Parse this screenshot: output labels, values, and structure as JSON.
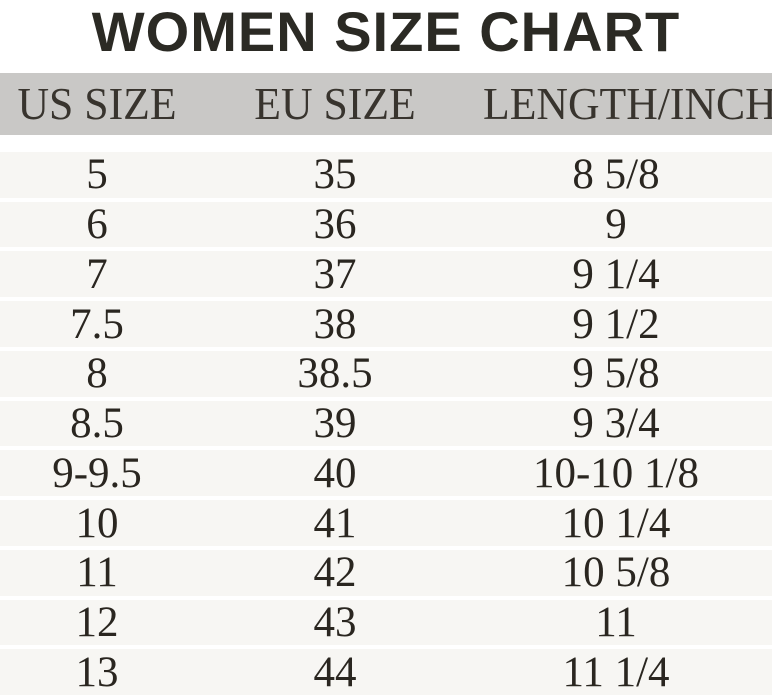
{
  "title": "WOMEN SIZE CHART",
  "table": {
    "headers": [
      "US SIZE",
      "EU SIZE",
      "LENGTH/INCH"
    ],
    "rows": [
      [
        "5",
        "35",
        "8 5/8"
      ],
      [
        "6",
        "36",
        "9"
      ],
      [
        "7",
        "37",
        "9 1/4"
      ],
      [
        "7.5",
        "38",
        "9 1/2"
      ],
      [
        "8",
        "38.5",
        "9 5/8"
      ],
      [
        "8.5",
        "39",
        "9 3/4"
      ],
      [
        "9-9.5",
        "40",
        "10-10 1/8"
      ],
      [
        "10",
        "41",
        "10 1/4"
      ],
      [
        "11",
        "42",
        "10 5/8"
      ],
      [
        "12",
        "43",
        "11"
      ],
      [
        "13",
        "44",
        "11 1/4"
      ]
    ]
  },
  "colors": {
    "title_text": "#2b2a24",
    "header_bg": "#c9c8c6",
    "header_text": "#38342e",
    "row_bg": "#f7f6f3",
    "row_text": "#2a2620",
    "separator": "#ffffff",
    "page_bg": "#ffffff"
  },
  "chart_data": {
    "type": "table",
    "title": "WOMEN SIZE CHART",
    "columns": [
      "US SIZE",
      "EU SIZE",
      "LENGTH/INCH"
    ],
    "rows": [
      [
        "5",
        "35",
        "8 5/8"
      ],
      [
        "6",
        "36",
        "9"
      ],
      [
        "7",
        "37",
        "9 1/4"
      ],
      [
        "7.5",
        "38",
        "9 1/2"
      ],
      [
        "8",
        "38.5",
        "9 5/8"
      ],
      [
        "8.5",
        "39",
        "9 3/4"
      ],
      [
        "9-9.5",
        "40",
        "10-10 1/8"
      ],
      [
        "10",
        "41",
        "10 1/4"
      ],
      [
        "11",
        "42",
        "10 5/8"
      ],
      [
        "12",
        "43",
        "11"
      ],
      [
        "13",
        "44",
        "11 1/4"
      ]
    ]
  }
}
